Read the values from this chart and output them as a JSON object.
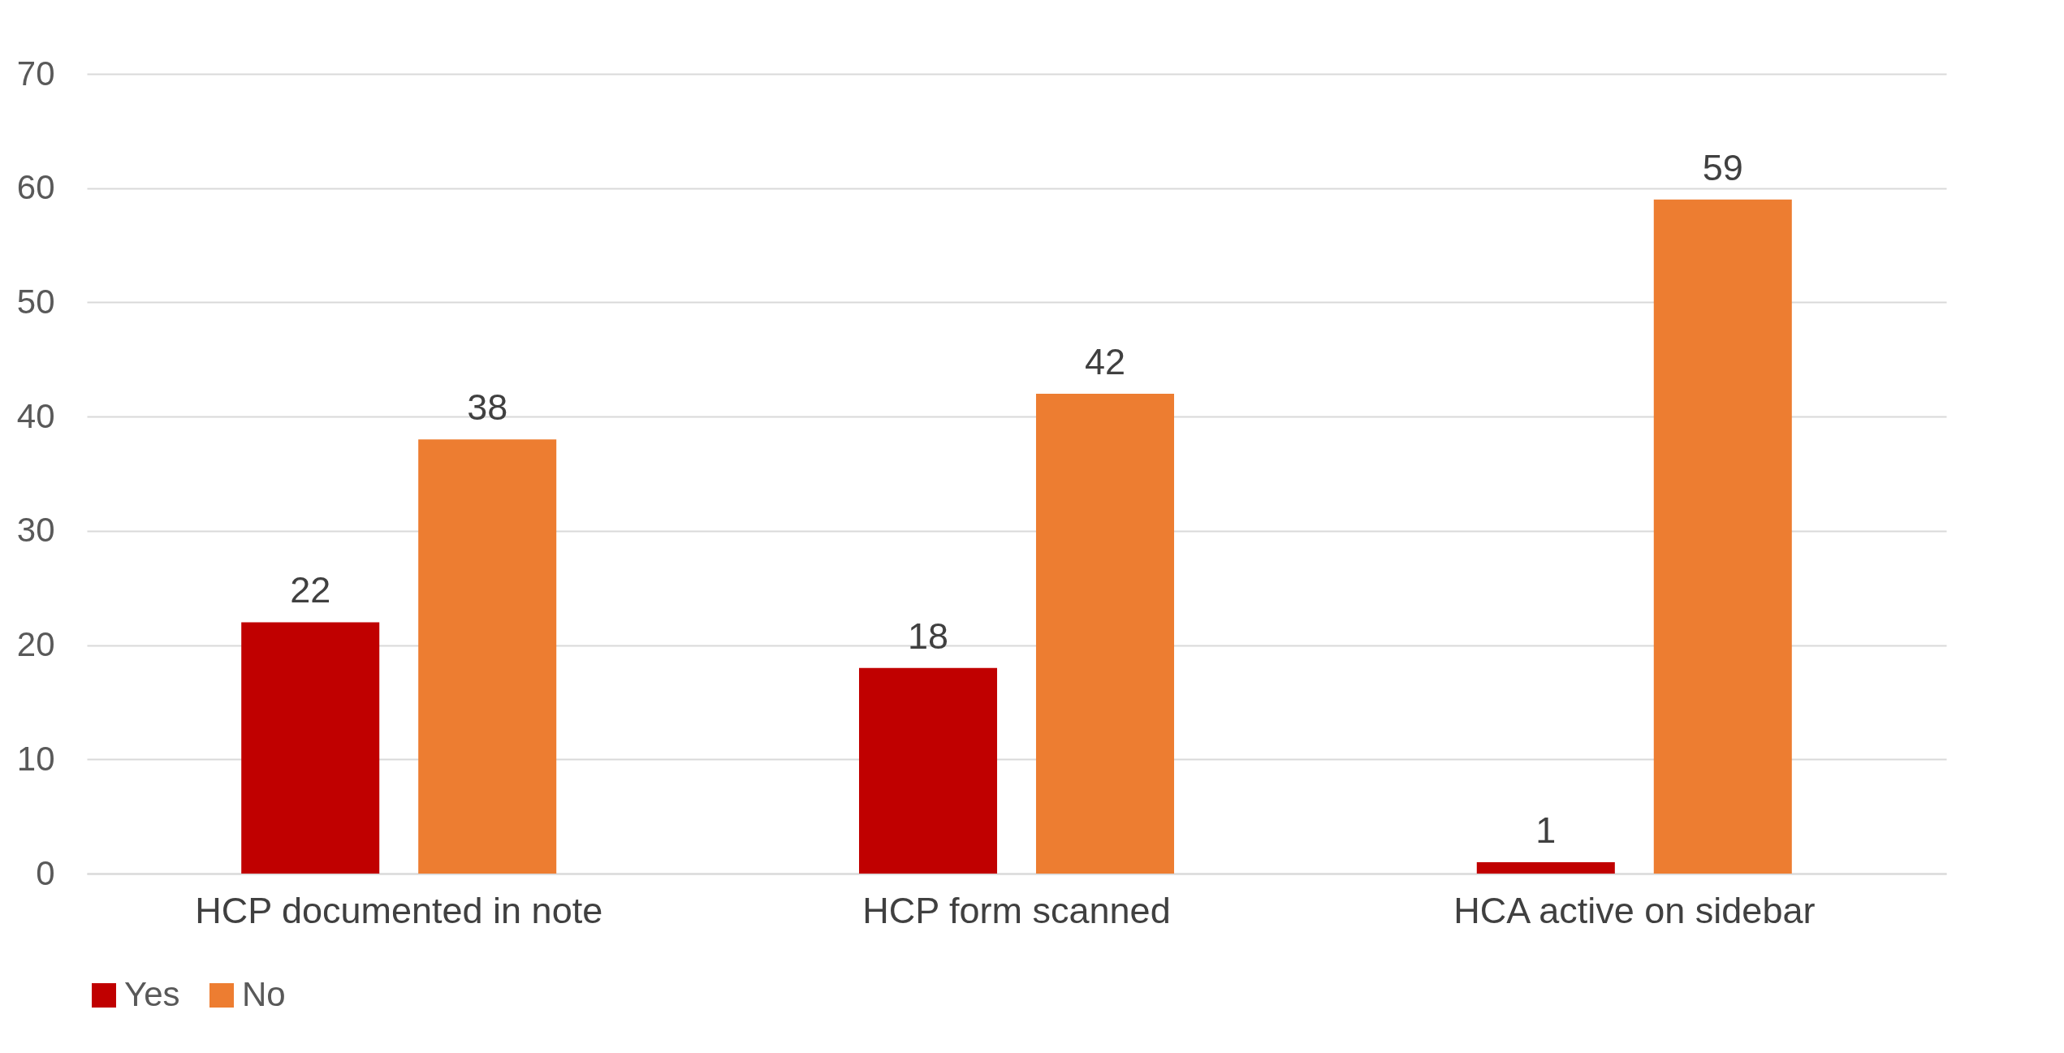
{
  "chart_data": {
    "type": "bar",
    "categories": [
      "HCP documented in note",
      "HCP form scanned",
      "HCA active on sidebar"
    ],
    "series": [
      {
        "name": "Yes",
        "color": "#c00000",
        "values": [
          22,
          18,
          1
        ]
      },
      {
        "name": "No",
        "color": "#ed7d31",
        "values": [
          38,
          42,
          59
        ]
      }
    ],
    "ylim": [
      0,
      70
    ],
    "yticks": [
      0,
      10,
      20,
      30,
      40,
      50,
      60,
      70
    ],
    "grid": "y",
    "legend": "bottom",
    "data_labels": true
  }
}
